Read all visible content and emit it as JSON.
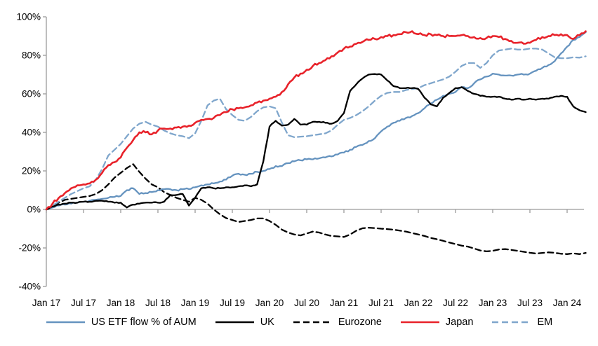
{
  "page": {
    "background": "#ffffff"
  },
  "chart_data": {
    "type": "line",
    "title": "",
    "x_axis": {
      "tick_labels": [
        "Jan 17",
        "Jul 17",
        "Jan 18",
        "Jul 18",
        "Jan 19",
        "Jul 19",
        "Jan 20",
        "Jul 20",
        "Jan 21",
        "Jul 21",
        "Jan 22",
        "Jul 22",
        "Jan 23",
        "Jul 23",
        "Jan 24"
      ],
      "frequency": "monthly",
      "start": "Jan 2017",
      "end": "Apr 2024",
      "n_points": 88
    },
    "y_axis": {
      "tick_labels": [
        "-40%",
        "-20%",
        "0%",
        "20%",
        "40%",
        "60%",
        "80%",
        "100%"
      ],
      "min": -40,
      "max": 100,
      "step": 20,
      "unit": "%"
    },
    "grid": "off",
    "legend_position": "bottom",
    "axis_color": "#9a9a9a",
    "series": [
      {
        "name": "US ETF flow % of AUM",
        "color": "#6593bf",
        "style": "solid",
        "values": [
          0,
          1,
          2,
          2.5,
          3,
          3.5,
          4,
          4.5,
          5,
          5.5,
          6,
          6.5,
          7,
          10,
          11,
          8,
          8.5,
          9,
          10,
          10.5,
          10.5,
          10,
          10.5,
          10.5,
          11.5,
          12.5,
          13,
          13.5,
          14.5,
          15.5,
          17.5,
          18.5,
          18,
          18.5,
          19.5,
          20,
          21,
          22.5,
          22.5,
          24,
          25,
          25.5,
          26,
          26,
          26.5,
          27,
          27.5,
          28.5,
          29.5,
          31,
          32.5,
          33.5,
          35.5,
          37,
          40.5,
          43,
          45,
          46,
          47.5,
          48.5,
          50,
          52.5,
          55,
          57,
          59,
          60,
          61,
          63.5,
          63,
          65.5,
          67.5,
          69,
          70.5,
          70,
          69.5,
          69.5,
          70,
          70,
          70.5,
          72,
          73.5,
          75,
          77,
          81,
          84.5,
          88,
          89.5,
          92
        ]
      },
      {
        "name": "UK",
        "color": "#000000",
        "style": "solid",
        "values": [
          0,
          1.5,
          2.5,
          3,
          3.5,
          3.5,
          4,
          4,
          4.5,
          4.5,
          4,
          3.5,
          3.5,
          1,
          2.5,
          3,
          3.5,
          3.5,
          3.5,
          4,
          7.5,
          7.5,
          8,
          2,
          6,
          11,
          11.5,
          11,
          11,
          11.5,
          11.5,
          12,
          12.5,
          12,
          13,
          25,
          43,
          46,
          43.5,
          44,
          47,
          44,
          44,
          45.5,
          45.5,
          45,
          44.5,
          46,
          50,
          61.5,
          65,
          68,
          70,
          70.3,
          70,
          67,
          64,
          63,
          63,
          63,
          62.5,
          58,
          54.5,
          53.5,
          58,
          60.5,
          63,
          63.5,
          61.5,
          60,
          59,
          58.5,
          58.5,
          58.5,
          57.5,
          57,
          57.5,
          57,
          57.5,
          57,
          57.5,
          57.5,
          58.5,
          59,
          58.5,
          53.5,
          51.5,
          50.5
        ]
      },
      {
        "name": "Eurozone",
        "color": "#000000",
        "style": "dashed",
        "values": [
          0,
          2,
          3.5,
          5,
          5.5,
          6,
          6.5,
          7,
          8,
          10,
          13,
          16.5,
          19,
          21.5,
          23.5,
          19.5,
          16,
          13,
          11.5,
          9,
          7.5,
          6,
          5,
          4,
          6,
          5,
          3,
          0,
          -2.5,
          -4.5,
          -5.5,
          -6.5,
          -6,
          -5.5,
          -4.7,
          -4.7,
          -6,
          -8,
          -10.5,
          -12,
          -13,
          -13.5,
          -12.5,
          -11.5,
          -12,
          -13,
          -13.8,
          -14,
          -14.3,
          -13,
          -11,
          -9.8,
          -9.5,
          -9.7,
          -10,
          -10.2,
          -10.5,
          -11,
          -11.5,
          -12.3,
          -13,
          -13.8,
          -14.8,
          -15.5,
          -16.3,
          -17.2,
          -18,
          -18.8,
          -19.3,
          -20.3,
          -21.3,
          -21.8,
          -21.5,
          -20.8,
          -20.6,
          -21,
          -21.5,
          -22,
          -22.5,
          -22.9,
          -22.6,
          -22.3,
          -22.5,
          -23,
          -23.2,
          -22.8,
          -23.2,
          -22.6
        ]
      },
      {
        "name": "Japan",
        "color": "#e8222a",
        "style": "solid",
        "values": [
          0,
          3,
          6,
          8.5,
          11,
          12.5,
          13,
          13.5,
          15.5,
          19,
          23,
          24.5,
          27,
          32,
          36,
          40,
          40,
          39,
          41,
          42,
          42,
          42.5,
          43,
          43.5,
          45,
          46.5,
          47,
          47.5,
          49,
          50.5,
          52,
          52.5,
          53,
          54,
          55.5,
          56.5,
          57.5,
          58.5,
          61,
          65,
          68.5,
          70.5,
          72.5,
          74.5,
          76,
          77.5,
          79.5,
          81.5,
          83.5,
          84.5,
          86,
          87,
          88,
          88.5,
          89.5,
          90,
          90.5,
          91,
          92,
          92.5,
          91,
          90.5,
          91,
          90.5,
          90,
          90,
          90,
          90.5,
          90,
          89.5,
          89,
          89,
          90,
          89.5,
          88.5,
          87.5,
          86.5,
          86,
          86.5,
          88,
          89.5,
          90,
          90.5,
          91,
          90.5,
          88.5,
          90.5,
          92.5
        ]
      },
      {
        "name": "EM",
        "color": "#7fa6cc",
        "style": "dashed",
        "values": [
          0,
          2,
          4,
          6,
          8,
          9.5,
          11,
          12,
          15.5,
          21,
          28,
          31,
          34,
          38,
          42,
          44.5,
          45.5,
          44,
          43,
          41,
          39.5,
          38.5,
          38,
          37,
          39.5,
          46,
          54,
          56.5,
          57.5,
          52,
          49,
          46.5,
          46,
          48,
          51,
          53,
          53.5,
          52.5,
          45,
          38.5,
          37.5,
          37.8,
          38,
          38.5,
          39,
          39.5,
          41,
          44,
          46.5,
          47.5,
          49,
          51,
          53.5,
          56.5,
          59,
          60.5,
          61,
          61,
          62,
          62.5,
          63,
          64.5,
          65.5,
          66.5,
          67.5,
          69,
          71.5,
          74.5,
          76,
          76,
          73.5,
          76,
          80,
          82.5,
          83,
          83.5,
          83,
          83,
          83.5,
          83.5,
          83,
          81,
          79,
          78.5,
          78.5,
          79,
          78.8,
          79.5
        ]
      }
    ]
  }
}
